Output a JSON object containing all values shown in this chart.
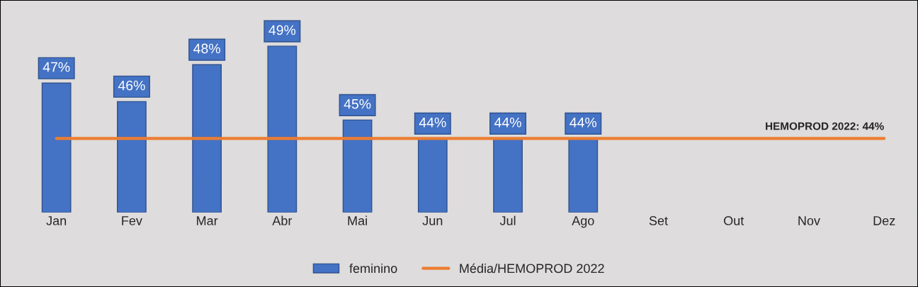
{
  "chart_data": {
    "type": "bar",
    "categories": [
      "Jan",
      "Fev",
      "Mar",
      "Abr",
      "Mai",
      "Jun",
      "Jul",
      "Ago",
      "Set",
      "Out",
      "Nov",
      "Dez"
    ],
    "series": [
      {
        "name": "feminino",
        "color": "#4472c4",
        "values": [
          47,
          46,
          48,
          49,
          45,
          44,
          44,
          44,
          null,
          null,
          null,
          null
        ],
        "value_labels": [
          "47%",
          "46%",
          "48%",
          "49%",
          "45%",
          "44%",
          "44%",
          "44%",
          null,
          null,
          null,
          null
        ]
      },
      {
        "name": "Média/HEMOPROD 2022",
        "type": "line",
        "color": "#ed7d31",
        "values": [
          44,
          44,
          44,
          44,
          44,
          44,
          44,
          44,
          44,
          44,
          44,
          44
        ],
        "value_labels": [
          null,
          null,
          null,
          null,
          null,
          null,
          null,
          null,
          null,
          null,
          null,
          "HEMOPROD 2022: 44%"
        ]
      }
    ],
    "ylim": [
      40,
      51.5
    ],
    "tick_labels": "x",
    "grid": false,
    "legend": "bottom"
  }
}
